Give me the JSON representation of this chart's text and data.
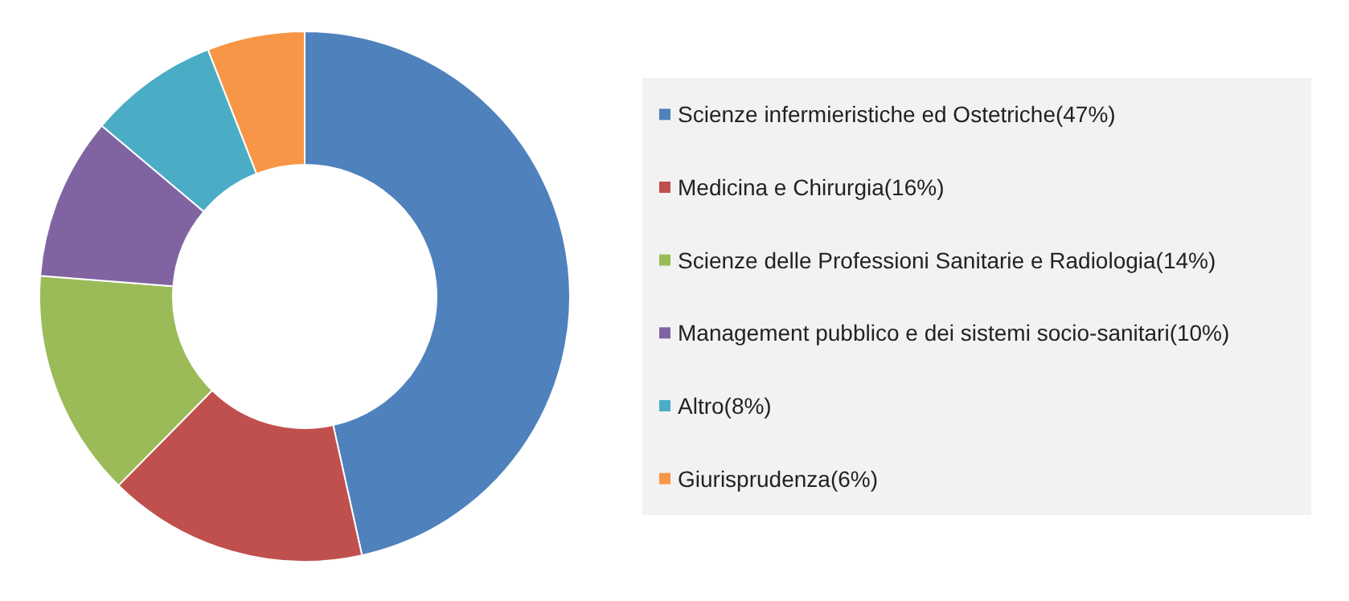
{
  "chart_data": {
    "type": "donut",
    "categories": [
      "Scienze infermieristiche ed Ostetriche(47%)",
      "Medicina e Chirurgia(16%)",
      "Scienze delle Professioni Sanitarie e Radiologia(14%)",
      "Management pubblico e dei sistemi socio-sanitari(10%)",
      "Altro(8%)",
      "Giurisprudenza(6%)"
    ],
    "values": [
      47,
      16,
      14,
      10,
      8,
      6
    ],
    "colors": [
      "#4f81bd",
      "#c0504d",
      "#9bbb59",
      "#8064a2",
      "#4bacc6",
      "#f79646"
    ],
    "legend": "right"
  }
}
